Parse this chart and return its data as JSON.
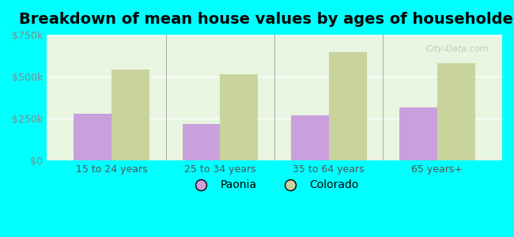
{
  "title": "Breakdown of mean house values by ages of householders",
  "categories": [
    "15 to 24 years",
    "25 to 34 years",
    "35 to 64 years",
    "65 years+"
  ],
  "paonia_values": [
    280000,
    215000,
    270000,
    315000
  ],
  "colorado_values": [
    540000,
    515000,
    645000,
    580000
  ],
  "paonia_color": "#c9a0dc",
  "colorado_color": "#c8d49b",
  "background_color": "#00ffff",
  "plot_bg_color": "#e8f5e0",
  "ylim": [
    0,
    750000
  ],
  "yticks": [
    0,
    250000,
    500000,
    750000
  ],
  "ytick_labels": [
    "$0",
    "$250k",
    "$500k",
    "$750k"
  ],
  "bar_width": 0.35,
  "title_fontsize": 14,
  "tick_fontsize": 9,
  "legend_fontsize": 10,
  "watermark": "City-Data.com"
}
